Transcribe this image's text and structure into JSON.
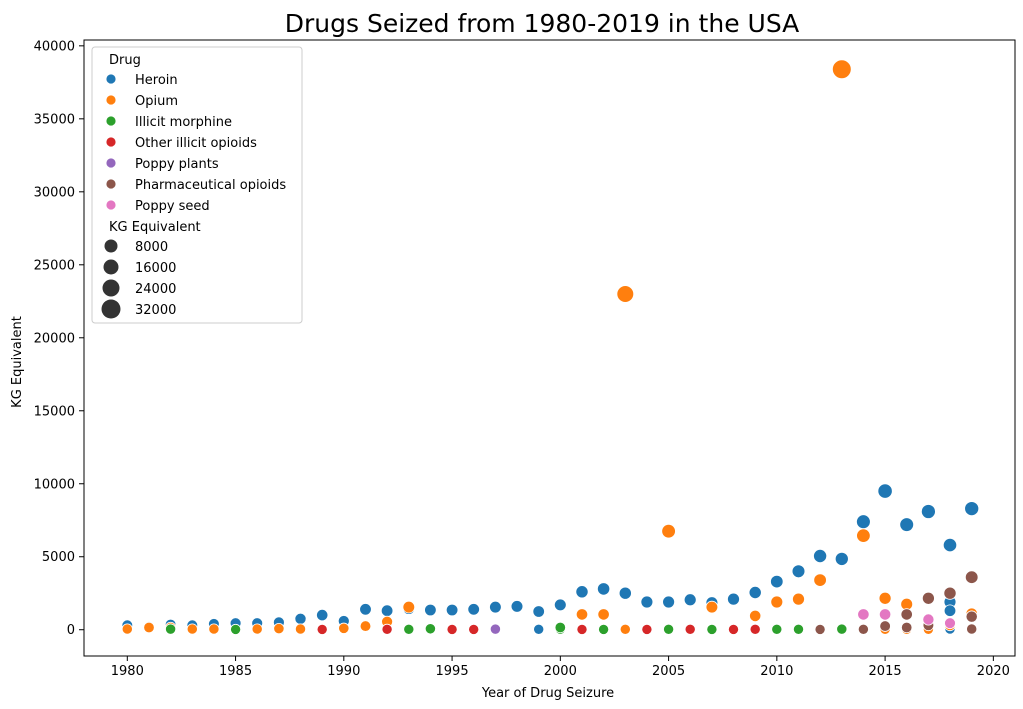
{
  "chart_data": {
    "type": "scatter",
    "title": "Drugs Seized from 1980-2019 in the USA",
    "xlabel": "Year of Drug Seizure",
    "ylabel": "KG Equivalent",
    "xlim": [
      1978,
      2021
    ],
    "ylim": [
      -1800,
      40400
    ],
    "xticks": [
      1980,
      1985,
      1990,
      1995,
      2000,
      2005,
      2010,
      2015,
      2020
    ],
    "yticks": [
      0,
      5000,
      10000,
      15000,
      20000,
      25000,
      30000,
      35000,
      40000
    ],
    "grid": false,
    "legend": {
      "placement": "upper-left",
      "hue_title": "Drug",
      "size_title": "KG Equivalent",
      "size_entries": [
        8000,
        16000,
        24000,
        32000
      ]
    },
    "series": [
      {
        "name": "Heroin",
        "color": "#1f77b4",
        "points": [
          [
            1980,
            300
          ],
          [
            1981,
            200
          ],
          [
            1982,
            350
          ],
          [
            1983,
            300
          ],
          [
            1984,
            400
          ],
          [
            1985,
            450
          ],
          [
            1986,
            450
          ],
          [
            1987,
            500
          ],
          [
            1988,
            750
          ],
          [
            1989,
            1000
          ],
          [
            1990,
            600
          ],
          [
            1991,
            1400
          ],
          [
            1992,
            1300
          ],
          [
            1993,
            1450
          ],
          [
            1994,
            1350
          ],
          [
            1995,
            1350
          ],
          [
            1996,
            1400
          ],
          [
            1997,
            1550
          ],
          [
            1998,
            1600
          ],
          [
            1999,
            1250
          ],
          [
            2000,
            1700
          ],
          [
            2001,
            2600
          ],
          [
            2002,
            2800
          ],
          [
            2003,
            2500
          ],
          [
            2004,
            1900
          ],
          [
            2005,
            1900
          ],
          [
            2006,
            2050
          ],
          [
            2007,
            1850
          ],
          [
            2008,
            2100
          ],
          [
            2009,
            2550
          ],
          [
            2010,
            3300
          ],
          [
            2011,
            4000
          ],
          [
            2012,
            5050
          ],
          [
            2013,
            4850
          ],
          [
            2014,
            7400
          ],
          [
            2015,
            9500
          ],
          [
            2016,
            7200
          ],
          [
            2017,
            8100
          ],
          [
            2018,
            5800
          ],
          [
            2018,
            1900
          ],
          [
            2018,
            1300
          ],
          [
            2018,
            50
          ],
          [
            2019,
            8300
          ],
          [
            1999,
            30
          ]
        ]
      },
      {
        "name": "Opium",
        "color": "#ff7f0e",
        "points": [
          [
            1980,
            50
          ],
          [
            1981,
            150
          ],
          [
            1982,
            150
          ],
          [
            1983,
            50
          ],
          [
            1984,
            50
          ],
          [
            1986,
            50
          ],
          [
            1987,
            80
          ],
          [
            1988,
            50
          ],
          [
            1990,
            100
          ],
          [
            1991,
            250
          ],
          [
            1992,
            550
          ],
          [
            1993,
            1550
          ],
          [
            2001,
            1050
          ],
          [
            2002,
            1050
          ],
          [
            2003,
            23000
          ],
          [
            2003,
            30
          ],
          [
            2005,
            6750
          ],
          [
            2007,
            1550
          ],
          [
            2009,
            950
          ],
          [
            2010,
            1900
          ],
          [
            2011,
            2100
          ],
          [
            2012,
            3400
          ],
          [
            2013,
            38400
          ],
          [
            2014,
            6450
          ],
          [
            2015,
            2150
          ],
          [
            2015,
            30
          ],
          [
            2016,
            1750
          ],
          [
            2016,
            30
          ],
          [
            2017,
            30
          ],
          [
            2018,
            300
          ],
          [
            2019,
            1100
          ]
        ]
      },
      {
        "name": "Illicit morphine",
        "color": "#2ca02c",
        "points": [
          [
            1982,
            40
          ],
          [
            1985,
            20
          ],
          [
            1993,
            30
          ],
          [
            1994,
            60
          ],
          [
            2000,
            40
          ],
          [
            2000,
            150
          ],
          [
            2001,
            30
          ],
          [
            2002,
            20
          ],
          [
            2005,
            30
          ],
          [
            2007,
            20
          ],
          [
            2010,
            30
          ],
          [
            2011,
            30
          ],
          [
            2013,
            40
          ]
        ]
      },
      {
        "name": "Other illicit opioids",
        "color": "#d62728",
        "points": [
          [
            1989,
            20
          ],
          [
            1992,
            30
          ],
          [
            1995,
            20
          ],
          [
            1996,
            20
          ],
          [
            2001,
            20
          ],
          [
            2004,
            20
          ],
          [
            2006,
            30
          ],
          [
            2008,
            20
          ],
          [
            2009,
            30
          ]
        ]
      },
      {
        "name": "Poppy plants",
        "color": "#9467bd",
        "points": [
          [
            1997,
            40
          ]
        ]
      },
      {
        "name": "Pharmaceutical opioids",
        "color": "#8c564b",
        "points": [
          [
            2012,
            20
          ],
          [
            2014,
            30
          ],
          [
            2015,
            250
          ],
          [
            2016,
            1050
          ],
          [
            2016,
            150
          ],
          [
            2017,
            2150
          ],
          [
            2017,
            300
          ],
          [
            2018,
            2500
          ],
          [
            2019,
            3600
          ],
          [
            2019,
            900
          ],
          [
            2019,
            50
          ]
        ]
      },
      {
        "name": "Poppy seed",
        "color": "#e377c2",
        "points": [
          [
            2014,
            1050
          ],
          [
            2015,
            1050
          ],
          [
            2017,
            700
          ],
          [
            2018,
            450
          ]
        ]
      }
    ]
  }
}
